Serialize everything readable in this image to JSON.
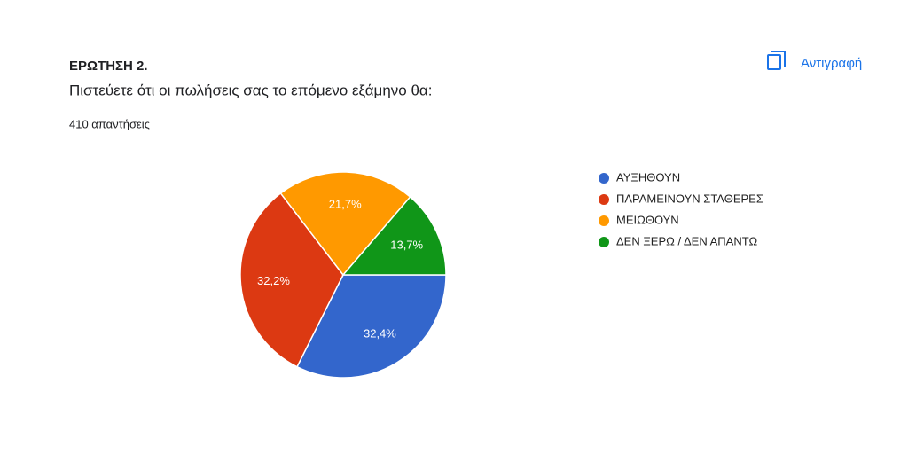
{
  "copy_button": "Αντιγραφή",
  "chart_data": {
    "type": "pie",
    "title": "ΕΡΩΤΗΣΗ 2.",
    "subtitle": "Πιστεύετε ότι οι πωλήσεις σας το επόμενο εξάμηνο θα:",
    "responses": "410 απαντήσεις",
    "categories": [
      "ΑΥΞΗΘΟΥΝ",
      "ΠΑΡΑΜΕΙΝΟΥΝ ΣΤΑΘΕΡΕΣ",
      "ΜΕΙΩΘΟΥΝ",
      "ΔΕΝ ΞΕΡΩ / ΔΕΝ ΑΠΑΝΤΩ"
    ],
    "values": [
      32.4,
      32.2,
      21.7,
      13.7
    ],
    "value_labels": [
      "32,4%",
      "32,2%",
      "21,7%",
      "13,7%"
    ],
    "colors": [
      "#3366cc",
      "#dc3912",
      "#ff9900",
      "#109618"
    ],
    "legend": "right"
  }
}
